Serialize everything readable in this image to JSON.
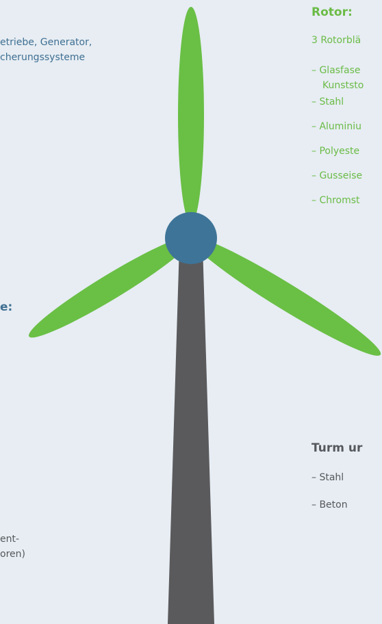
{
  "left_top": {
    "lines": [
      "etriebe, Generator,",
      "cherungssysteme"
    ]
  },
  "left_middle": {
    "heading": "e:"
  },
  "left_bottom": {
    "lines": [
      "ent-",
      "oren)"
    ]
  },
  "rotor": {
    "heading": "Rotor:",
    "lines": [
      "3 Rotorblä",
      "– Glasfase",
      "Kunststo",
      "– Stahl",
      "– Aluminiu",
      "– Polyeste",
      "– Gusseise",
      "– Chromst"
    ]
  },
  "tower": {
    "heading": "Turm ur",
    "lines": [
      "– Stahl",
      "– Beton"
    ]
  }
}
